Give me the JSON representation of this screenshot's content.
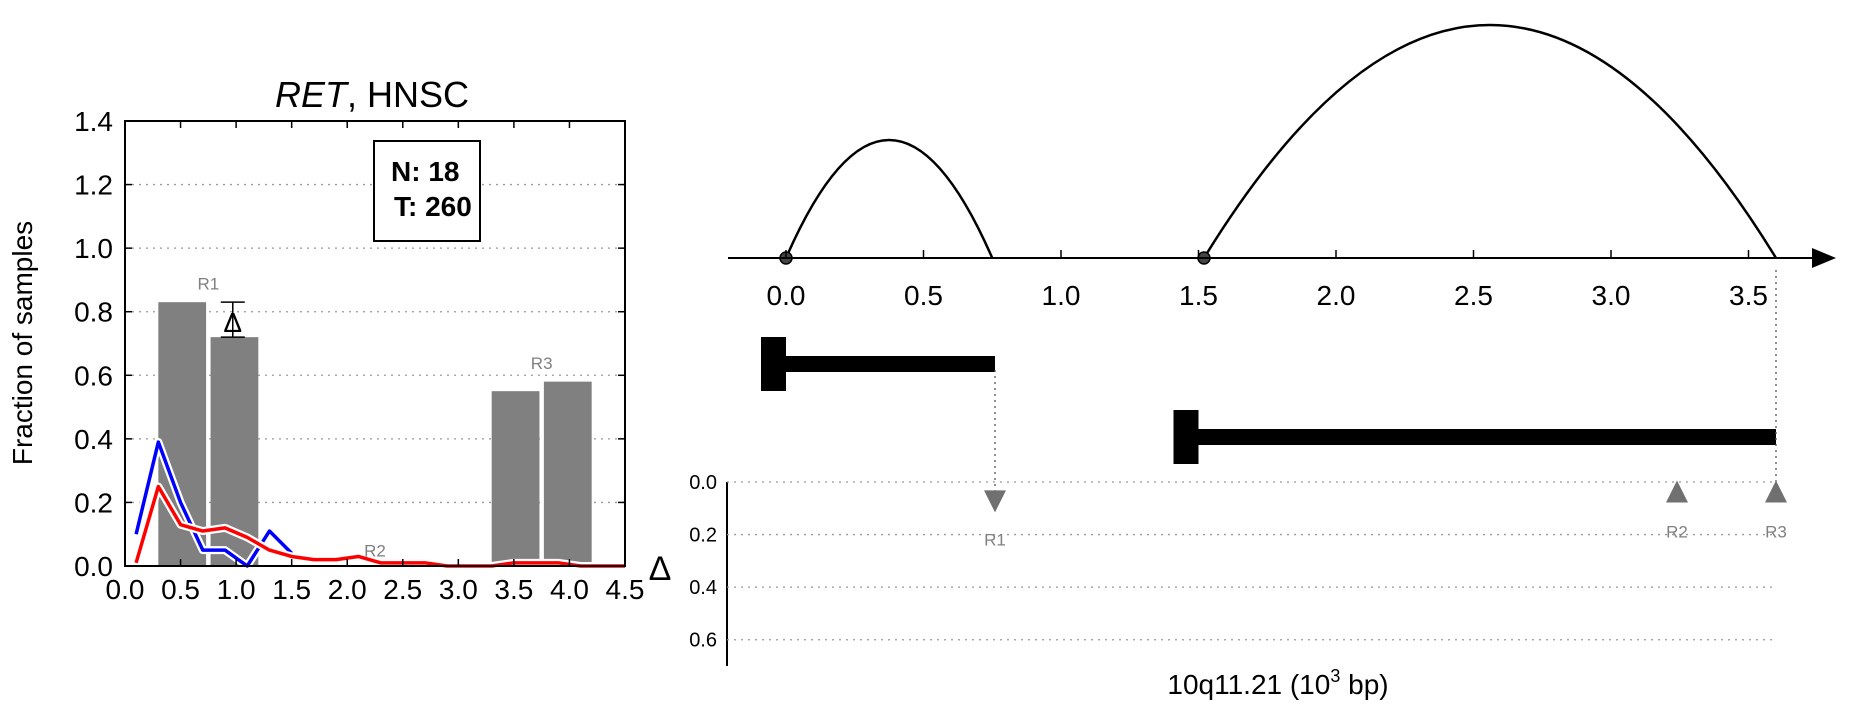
{
  "chart_data": [
    {
      "type": "bar",
      "title": {
        "gene": "RET",
        "rest": ", HNSC"
      },
      "ylabel": "Fraction of samples",
      "xlim": [
        0.0,
        4.5
      ],
      "ylim": [
        0.0,
        1.4
      ],
      "xticks": [
        "0.0",
        "0.5",
        "1.0",
        "1.5",
        "2.0",
        "2.5",
        "3.0",
        "3.5",
        "4.0",
        "4.5"
      ],
      "yticks": [
        "0.0",
        "0.2",
        "0.4",
        "0.6",
        "0.8",
        "1.0",
        "1.2",
        "1.4"
      ],
      "grid": true,
      "legend_box": {
        "n_label": "N: 18",
        "t_label": "T: 260",
        "placement": "top-right"
      },
      "bar_color": "#808080",
      "bars": [
        {
          "x0": 0.3,
          "x1": 0.73,
          "value": 0.83
        },
        {
          "x0": 0.77,
          "x1": 1.2,
          "value": 0.72
        },
        {
          "x0": 3.3,
          "x1": 3.73,
          "value": 0.55
        },
        {
          "x0": 3.77,
          "x1": 4.2,
          "value": 0.58
        }
      ],
      "region_labels": [
        {
          "text": "R1",
          "x": 0.75,
          "y": 0.87
        },
        {
          "text": "R2",
          "x": 2.25,
          "y": 0.03
        },
        {
          "text": "R3",
          "x": 3.75,
          "y": 0.62
        }
      ],
      "delta_annotation": {
        "symbol": "Δ",
        "x": 0.97,
        "y_top": 0.83,
        "y_bottom": 0.72
      },
      "series": [
        {
          "color": "#0000ff",
          "x": [
            0.1,
            0.3,
            0.5,
            0.7,
            0.9,
            1.1,
            1.3,
            1.5
          ],
          "values": [
            0.1,
            0.39,
            0.2,
            0.05,
            0.05,
            0.0,
            0.11,
            0.04
          ]
        },
        {
          "color": "#ff0000",
          "x": [
            0.1,
            0.3,
            0.5,
            0.7,
            0.9,
            1.1,
            1.3,
            1.5,
            1.7,
            1.9,
            2.1,
            2.3,
            2.5,
            2.7,
            2.9,
            3.1,
            3.3,
            3.5,
            3.7,
            3.9,
            4.1,
            4.3,
            4.5
          ],
          "values": [
            0.01,
            0.25,
            0.13,
            0.11,
            0.12,
            0.09,
            0.05,
            0.03,
            0.02,
            0.02,
            0.03,
            0.01,
            0.01,
            0.01,
            0.0,
            0.0,
            0.0,
            0.01,
            0.01,
            0.01,
            0.0,
            0.0,
            0.0
          ]
        }
      ]
    },
    {
      "type": "diagram",
      "xlabel": {
        "prefix": "10q11.21 (10",
        "superscript": "3",
        "suffix": " bp)"
      },
      "xlim": [
        0.0,
        3.7
      ],
      "xticks": [
        "0.0",
        "0.5",
        "1.0",
        "1.5",
        "2.0",
        "2.5",
        "3.0",
        "3.5"
      ],
      "arcs": [
        {
          "start": 0.0,
          "end": 0.75,
          "height": "low"
        },
        {
          "start": 1.52,
          "end": 3.6,
          "height": "high"
        }
      ],
      "genes": [
        {
          "start": 0.0,
          "end": 0.76
        },
        {
          "start": 1.5,
          "end": 3.6
        }
      ],
      "delta_axis": {
        "label": "Δ",
        "ticks": [
          "0.0",
          "0.2",
          "0.4",
          "0.6"
        ],
        "ylim": [
          0.0,
          0.7
        ]
      },
      "markers": [
        {
          "label": "R1",
          "x": 0.76,
          "direction": "down",
          "delta": 0.07
        },
        {
          "label": "R2",
          "x": 3.24,
          "direction": "up",
          "delta": 0.04
        },
        {
          "label": "R3",
          "x": 3.6,
          "direction": "up",
          "delta": 0.04
        }
      ],
      "marker_color": "#707070"
    }
  ]
}
